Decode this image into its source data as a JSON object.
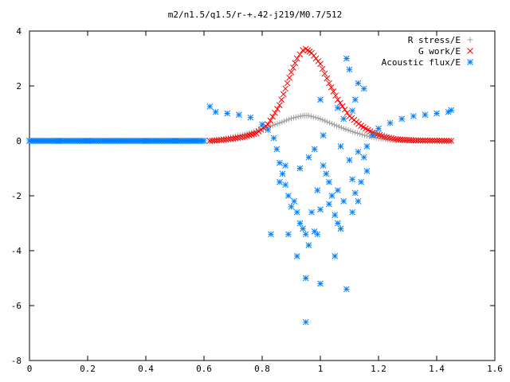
{
  "chart_data": {
    "type": "scatter",
    "title": "m2/n1.5/q1.5/r-+.42-j219/M0.7/512",
    "xlabel": "",
    "ylabel": "",
    "xlim": [
      0,
      1.6
    ],
    "ylim": [
      -8,
      4
    ],
    "x_ticks": [
      "0",
      "0.2",
      "0.4",
      "0.6",
      "0.8",
      "1",
      "1.2",
      "1.4",
      "1.6"
    ],
    "y_ticks": [
      "4",
      "2",
      "0",
      "-2",
      "-4",
      "-6",
      "-8"
    ],
    "legend_position": "top-right",
    "series": [
      {
        "name": "R stress/E",
        "marker": "plus",
        "color": "#a0a0a0",
        "points": [
          [
            0.62,
            0.0
          ],
          [
            0.66,
            0.06
          ],
          [
            0.7,
            0.14
          ],
          [
            0.74,
            0.24
          ],
          [
            0.78,
            0.36
          ],
          [
            0.82,
            0.5
          ],
          [
            0.86,
            0.65
          ],
          [
            0.9,
            0.82
          ],
          [
            0.94,
            0.92
          ],
          [
            0.96,
            0.92
          ],
          [
            1.0,
            0.8
          ],
          [
            1.04,
            0.62
          ],
          [
            1.08,
            0.45
          ],
          [
            1.12,
            0.3
          ],
          [
            1.16,
            0.18
          ],
          [
            1.2,
            0.09
          ],
          [
            1.24,
            0.04
          ],
          [
            1.3,
            0.01
          ],
          [
            1.36,
            0.0
          ],
          [
            1.45,
            0.0
          ]
        ]
      },
      {
        "name": "G work/E",
        "marker": "cross",
        "color": "#ff0000",
        "points": [
          [
            0.62,
            0.0
          ],
          [
            0.66,
            0.03
          ],
          [
            0.7,
            0.08
          ],
          [
            0.74,
            0.15
          ],
          [
            0.78,
            0.28
          ],
          [
            0.82,
            0.6
          ],
          [
            0.86,
            1.3
          ],
          [
            0.88,
            1.9
          ],
          [
            0.9,
            2.5
          ],
          [
            0.92,
            3.0
          ],
          [
            0.94,
            3.3
          ],
          [
            0.95,
            3.35
          ],
          [
            0.97,
            3.2
          ],
          [
            1.0,
            2.8
          ],
          [
            1.03,
            2.1
          ],
          [
            1.06,
            1.5
          ],
          [
            1.1,
            0.9
          ],
          [
            1.14,
            0.55
          ],
          [
            1.18,
            0.3
          ],
          [
            1.22,
            0.15
          ],
          [
            1.26,
            0.06
          ],
          [
            1.32,
            0.02
          ],
          [
            1.45,
            0.0
          ]
        ]
      },
      {
        "name": "Acoustic flux/E",
        "marker": "star",
        "color": "#0080ff",
        "points": [
          [
            0.0,
            0.0
          ],
          [
            0.1,
            0.0
          ],
          [
            0.2,
            0.0
          ],
          [
            0.3,
            0.0
          ],
          [
            0.4,
            0.0
          ],
          [
            0.5,
            0.0
          ],
          [
            0.6,
            0.0
          ],
          [
            0.62,
            1.25
          ],
          [
            0.64,
            1.05
          ],
          [
            0.68,
            1.0
          ],
          [
            0.72,
            0.95
          ],
          [
            0.76,
            0.85
          ],
          [
            0.8,
            0.6
          ],
          [
            0.82,
            0.4
          ],
          [
            0.84,
            0.1
          ],
          [
            0.85,
            -0.3
          ],
          [
            0.86,
            -0.8
          ],
          [
            0.87,
            -1.2
          ],
          [
            0.88,
            -1.6
          ],
          [
            0.89,
            -2.0
          ],
          [
            0.9,
            -2.4
          ],
          [
            0.91,
            -2.2
          ],
          [
            0.92,
            -2.6
          ],
          [
            0.93,
            -3.0
          ],
          [
            0.94,
            -3.2
          ],
          [
            0.95,
            -3.4
          ],
          [
            0.96,
            -3.8
          ],
          [
            0.97,
            -2.6
          ],
          [
            0.98,
            -3.3
          ],
          [
            0.99,
            -1.8
          ],
          [
            1.0,
            -5.2
          ],
          [
            1.01,
            -0.9
          ],
          [
            1.02,
            -1.2
          ],
          [
            1.03,
            -1.5
          ],
          [
            1.04,
            -2.0
          ],
          [
            1.05,
            -2.7
          ],
          [
            1.06,
            -3.0
          ],
          [
            1.07,
            -3.2
          ],
          [
            1.08,
            -2.2
          ],
          [
            1.09,
            -5.4
          ],
          [
            1.1,
            -0.7
          ],
          [
            1.11,
            -1.4
          ],
          [
            1.12,
            -1.9
          ],
          [
            1.13,
            -2.2
          ],
          [
            1.14,
            -1.5
          ],
          [
            1.15,
            -0.6
          ],
          [
            1.16,
            -0.2
          ],
          [
            1.18,
            0.2
          ],
          [
            1.2,
            0.45
          ],
          [
            1.24,
            0.65
          ],
          [
            1.28,
            0.8
          ],
          [
            1.32,
            0.9
          ],
          [
            1.36,
            0.95
          ],
          [
            1.4,
            1.0
          ],
          [
            1.44,
            1.05
          ],
          [
            1.45,
            1.12
          ],
          [
            0.95,
            -6.6
          ],
          [
            0.95,
            -5.0
          ],
          [
            0.89,
            -3.4
          ],
          [
            0.83,
            -3.4
          ],
          [
            0.92,
            -4.2
          ],
          [
            0.99,
            -3.4
          ],
          [
            1.05,
            -4.2
          ],
          [
            1.09,
            3.0
          ],
          [
            1.1,
            2.6
          ],
          [
            1.13,
            2.1
          ],
          [
            1.15,
            1.9
          ],
          [
            1.12,
            1.5
          ],
          [
            1.0,
            1.5
          ],
          [
            1.06,
            1.2
          ],
          [
            1.08,
            0.8
          ],
          [
            1.11,
            1.1
          ],
          [
            1.07,
            -0.2
          ],
          [
            1.01,
            0.2
          ],
          [
            0.98,
            -0.3
          ],
          [
            0.96,
            -0.6
          ],
          [
            0.93,
            -1.0
          ],
          [
            0.88,
            -0.9
          ],
          [
            0.86,
            -1.5
          ],
          [
            1.16,
            -1.1
          ],
          [
            1.13,
            -0.4
          ],
          [
            1.06,
            -1.8
          ],
          [
            1.03,
            -2.3
          ],
          [
            1.0,
            -2.5
          ],
          [
            1.11,
            -2.6
          ]
        ]
      }
    ]
  }
}
